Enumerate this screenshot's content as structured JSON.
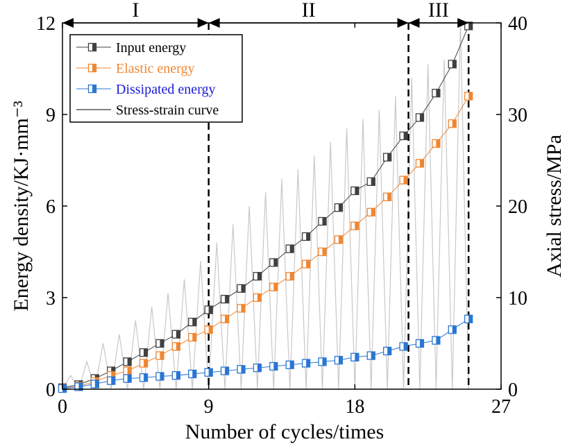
{
  "chart_data": {
    "type": "line",
    "x": [
      0,
      1,
      2,
      3,
      4,
      5,
      6,
      7,
      8,
      9,
      10,
      11,
      12,
      13,
      14,
      15,
      16,
      17,
      18,
      19,
      20,
      21,
      22,
      23,
      24,
      25
    ],
    "series": [
      {
        "name": "Input energy",
        "axis": "left",
        "color": "#404040",
        "values": [
          0.05,
          0.15,
          0.35,
          0.6,
          0.9,
          1.2,
          1.5,
          1.8,
          2.2,
          2.6,
          2.95,
          3.3,
          3.7,
          4.15,
          4.6,
          5.0,
          5.5,
          5.95,
          6.5,
          6.8,
          7.6,
          8.3,
          8.9,
          9.7,
          10.65,
          11.9
        ]
      },
      {
        "name": "Elastic energy",
        "axis": "left",
        "color": "#ef8632",
        "values": [
          0.03,
          0.1,
          0.25,
          0.45,
          0.6,
          0.85,
          1.1,
          1.4,
          1.7,
          1.95,
          2.3,
          2.65,
          3.0,
          3.35,
          3.7,
          4.1,
          4.5,
          4.9,
          5.35,
          5.8,
          6.3,
          6.85,
          7.4,
          8.05,
          8.7,
          9.6
        ]
      },
      {
        "name": "Dissipated energy",
        "axis": "left",
        "color": "#2a76d2",
        "values": [
          0.02,
          0.08,
          0.17,
          0.28,
          0.35,
          0.38,
          0.42,
          0.45,
          0.5,
          0.55,
          0.6,
          0.65,
          0.7,
          0.75,
          0.8,
          0.85,
          0.9,
          0.95,
          1.05,
          1.1,
          1.25,
          1.4,
          1.5,
          1.6,
          1.95,
          2.3
        ]
      }
    ],
    "stress_strain_curve": {
      "name": "Stress-strain curve",
      "axis": "right",
      "color": "#c8c8c8",
      "peaks": [
        1.5,
        3,
        5,
        6,
        7.5,
        9,
        10.5,
        12,
        14,
        16,
        18,
        20,
        21.5,
        23,
        24,
        25.5,
        27,
        28.5,
        29.5,
        30.5,
        32,
        34,
        35.5,
        36,
        40
      ],
      "troughs": [
        0,
        0,
        0,
        0,
        0,
        0,
        0,
        0,
        0,
        0,
        0,
        0,
        0,
        0,
        0,
        0,
        0,
        0,
        0,
        0,
        0,
        0,
        0,
        0,
        0
      ]
    },
    "xlabel": "Number of cycles/times",
    "ylabel": "Energy density/KJ·mm⁻³",
    "y2label": "Axial stress/MPa",
    "xlim": [
      0,
      27
    ],
    "ylim": [
      0,
      12
    ],
    "y2lim": [
      0,
      40
    ],
    "xticks": [
      "0",
      "9",
      "18",
      "27"
    ],
    "yticks": [
      "0",
      "3",
      "6",
      "9",
      "12"
    ],
    "y2ticks": [
      "0",
      "10",
      "20",
      "30",
      "40"
    ],
    "stage_boundaries": [
      9,
      21.3,
      25
    ],
    "stages": [
      {
        "label": "I",
        "from": 0,
        "to": 9
      },
      {
        "label": "II",
        "from": 9,
        "to": 21.3
      },
      {
        "label": "III",
        "from": 21.3,
        "to": 25
      }
    ],
    "legend_position": "top-left",
    "grid": false
  }
}
